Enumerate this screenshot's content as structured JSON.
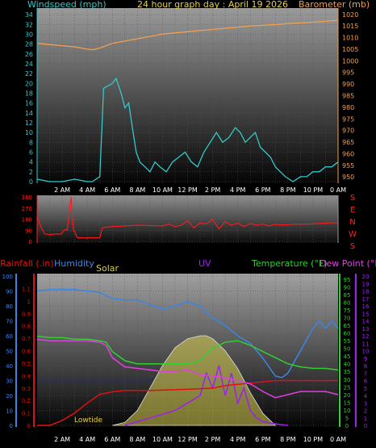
{
  "title": "24 hour graph day : April 19 2026",
  "x_ticks": [
    "2 AM",
    "4 AM",
    "6 AM",
    "8 AM",
    "10 AM",
    "12 PM",
    "2 PM",
    "4 PM",
    "6 PM",
    "8 PM",
    "10 PM",
    "0 AM"
  ],
  "colors": {
    "wind": "#33c9c9",
    "baro": "#f0a050",
    "direction": "#ff1a1a",
    "rain": "#e01010",
    "humidity": "#3a86e6",
    "solar": "#d8d050",
    "uv": "#a020f0",
    "temperature": "#30d030",
    "dewpoint": "#e040e0"
  },
  "chart_data": [
    {
      "type": "line",
      "name": "wind-baro",
      "xlabel": "",
      "left_label": "Windspeed (mph)",
      "right_label": "Barometer (mb)",
      "left_ticks": [
        0,
        2,
        4,
        6,
        8,
        10,
        12,
        14,
        16,
        18,
        20,
        22,
        24,
        26,
        28,
        30,
        32,
        34
      ],
      "right_ticks": [
        950,
        955,
        960,
        965,
        970,
        975,
        980,
        985,
        990,
        995,
        1000,
        1005,
        1010,
        1015,
        1020
      ],
      "ylim_left": [
        0,
        35
      ],
      "ylim_right": [
        948,
        1022
      ],
      "series": [
        {
          "name": "Windspeed (mph)",
          "axis": "left",
          "x": [
            0,
            1,
            2,
            3,
            4,
            4.4,
            5,
            5.3,
            6,
            6.3,
            6.7,
            7,
            7.3,
            7.6,
            7.9,
            8.2,
            8.6,
            9,
            9.4,
            9.8,
            10.3,
            10.8,
            11.3,
            11.8,
            12.3,
            12.8,
            13.3,
            13.8,
            14.3,
            14.8,
            15.3,
            15.8,
            16.2,
            16.6,
            17,
            17.4,
            17.8,
            18.2,
            18.6,
            19,
            19.4,
            19.8,
            20.4,
            21,
            21.5,
            22,
            22.5,
            23,
            23.5,
            24
          ],
          "y": [
            0.5,
            0,
            0,
            0.5,
            0,
            0,
            1,
            19,
            20,
            21,
            18,
            15,
            16,
            11,
            6,
            4,
            3,
            2,
            4,
            3,
            2,
            4,
            5,
            6,
            4,
            3,
            6,
            8,
            10,
            8,
            9,
            11,
            10,
            8,
            9,
            10,
            7,
            6,
            5,
            3,
            2,
            1,
            0,
            1,
            1,
            2,
            2,
            3,
            3,
            4
          ]
        },
        {
          "name": "Barometer (mb)",
          "axis": "right",
          "x": [
            0,
            1,
            2,
            3,
            4,
            4.5,
            5,
            5.5,
            6,
            7,
            8,
            9,
            10,
            11,
            12,
            13,
            14,
            15,
            16,
            17,
            18,
            19,
            20,
            21,
            22,
            23,
            24
          ],
          "y": [
            1007.5,
            1007,
            1006.5,
            1006,
            1005,
            1004.8,
            1005.5,
            1006.5,
            1007.5,
            1008.5,
            1009.5,
            1010.5,
            1011.5,
            1012,
            1012.5,
            1013,
            1013.5,
            1014,
            1014.5,
            1015,
            1015.3,
            1015.6,
            1016,
            1016.3,
            1016.6,
            1017,
            1017.5
          ]
        }
      ]
    },
    {
      "type": "line",
      "name": "wind-direction",
      "left_ticks": [
        0,
        90,
        180,
        270,
        360
      ],
      "right_labels": [
        "S",
        "E",
        "N",
        "W",
        "S"
      ],
      "ylim": [
        0,
        360
      ],
      "series": [
        {
          "name": "direction",
          "x": [
            0,
            0.3,
            0.6,
            1.0,
            1.5,
            1.9,
            2.2,
            2.4,
            2.7,
            2.9,
            3.0,
            3.2,
            3.5,
            3.9,
            4.3,
            4.7,
            5.0,
            5.2,
            5.5,
            6,
            7,
            8,
            9,
            10,
            10.5,
            11,
            11.5,
            12,
            12.5,
            13,
            13.5,
            14,
            14.5,
            15,
            15.5,
            16,
            16.5,
            17,
            17.5,
            18,
            18.5,
            19,
            19.5,
            20,
            20.5,
            21,
            21.5,
            22,
            22.5,
            23,
            23.5,
            24
          ],
          "y": [
            200,
            120,
            60,
            55,
            60,
            58,
            95,
            90,
            360,
            85,
            80,
            30,
            30,
            28,
            30,
            28,
            30,
            110,
            115,
            120,
            125,
            130,
            128,
            125,
            140,
            120,
            130,
            170,
            110,
            150,
            140,
            180,
            100,
            160,
            130,
            150,
            120,
            145,
            130,
            140,
            125,
            138,
            132,
            135,
            140,
            138,
            140,
            142,
            145,
            148,
            150,
            152
          ]
        }
      ]
    },
    {
      "type": "line",
      "name": "multi",
      "labels": {
        "rain": "Rainfall (.in)",
        "humidity": "Humidity",
        "solar": "Solar",
        "uv": "UV",
        "temperature": "Temperature (°F)",
        "dewpoint": "Dew Point (°F)"
      },
      "annotation": "Lowtide",
      "left_pct_ticks": [
        0,
        10,
        20,
        30,
        40,
        50,
        60,
        70,
        80,
        90,
        100
      ],
      "rain_ticks": [
        0,
        0.1,
        0.2,
        0.3,
        0.4,
        0.5,
        0.6,
        0.7,
        0.8,
        0.9,
        1.0,
        1.1
      ],
      "temp_ticks": [
        0,
        5,
        10,
        15,
        20,
        25,
        30,
        35,
        40,
        45,
        50,
        55,
        60,
        65,
        70,
        75,
        80,
        85,
        90,
        95
      ],
      "uv_ticks": [
        0,
        1,
        2,
        3,
        4,
        5,
        6,
        7,
        8,
        9,
        10,
        11,
        12,
        13,
        14,
        15,
        16,
        17,
        18,
        19,
        20
      ],
      "ylim_pct": [
        0,
        100
      ],
      "ylim_rain": [
        0,
        1.2
      ],
      "ylim_temp": [
        0,
        97
      ],
      "ylim_uv": [
        0,
        20
      ],
      "series": [
        {
          "name": "Humidity",
          "key": "humidity",
          "axis": "pct",
          "x": [
            0,
            1,
            2,
            3,
            4,
            5,
            6,
            7,
            8,
            9,
            10,
            11,
            12,
            13,
            14,
            15,
            16,
            17,
            18,
            19,
            19.5,
            20,
            21,
            22,
            22.5,
            23,
            23.5,
            24
          ],
          "y": [
            90,
            91,
            91,
            91,
            90,
            89,
            85,
            84,
            84,
            81,
            78,
            80,
            83,
            80,
            72,
            67,
            60,
            55,
            45,
            33,
            32,
            35,
            50,
            65,
            70,
            65,
            70,
            65
          ]
        },
        {
          "name": "Temperature (°F)",
          "key": "temperature",
          "axis": "temp",
          "x": [
            0,
            1,
            2,
            3,
            4,
            5,
            5.5,
            6,
            7,
            8,
            9,
            10,
            11,
            12,
            13,
            14,
            15,
            16,
            17,
            18,
            19,
            20,
            21,
            22,
            23,
            24
          ],
          "y": [
            58,
            57,
            57,
            56,
            56,
            55,
            54,
            48,
            42,
            40,
            40,
            40,
            40,
            40,
            42,
            50,
            54,
            55,
            52,
            48,
            44,
            40,
            38,
            37,
            37,
            36
          ]
        },
        {
          "name": "Dew Point (°F)",
          "key": "dewpoint",
          "axis": "temp",
          "x": [
            0,
            1,
            2,
            3,
            4,
            5,
            5.5,
            6,
            7,
            8,
            9,
            10,
            11,
            12,
            13,
            14,
            15,
            16,
            17,
            18,
            19,
            20,
            21,
            22,
            23,
            24
          ],
          "y": [
            56,
            55,
            55,
            55,
            55,
            54,
            52,
            44,
            38,
            37,
            36,
            35,
            35,
            36,
            33,
            32,
            31,
            29,
            27,
            22,
            18,
            20,
            22,
            22,
            22,
            20
          ]
        },
        {
          "name": "Rainfall (.in)",
          "key": "rain",
          "axis": "rain",
          "x": [
            0,
            1,
            1.5,
            2,
            3,
            4,
            5,
            6,
            7,
            9,
            12,
            14,
            15,
            16,
            17,
            18,
            19,
            20,
            21,
            22,
            23,
            24
          ],
          "y": [
            0,
            0,
            0.02,
            0.04,
            0.1,
            0.18,
            0.25,
            0.27,
            0.28,
            0.28,
            0.29,
            0.3,
            0.32,
            0.33,
            0.34,
            0.35,
            0.36,
            0.36,
            0.36,
            0.36,
            0.36,
            0.36
          ]
        },
        {
          "name": "Solar",
          "key": "solar",
          "axis": "pct",
          "x": [
            6,
            7,
            8,
            9,
            10,
            11,
            12,
            13,
            13.5,
            14,
            15,
            16,
            17,
            18,
            19
          ],
          "y": [
            0,
            2,
            10,
            25,
            40,
            52,
            58,
            60,
            60,
            58,
            50,
            38,
            22,
            8,
            0
          ]
        },
        {
          "name": "UV",
          "key": "uv",
          "axis": "uv",
          "x": [
            7,
            8,
            9,
            10,
            11,
            12,
            13,
            13.5,
            14,
            14.5,
            15,
            15.5,
            16,
            16.5,
            17,
            17.5,
            18,
            19,
            20
          ],
          "y": [
            0,
            0.5,
            1,
            1.5,
            2,
            3,
            4,
            7,
            5,
            8,
            4,
            7,
            3,
            5,
            2,
            1,
            0.5,
            0.2,
            0
          ]
        }
      ]
    }
  ]
}
